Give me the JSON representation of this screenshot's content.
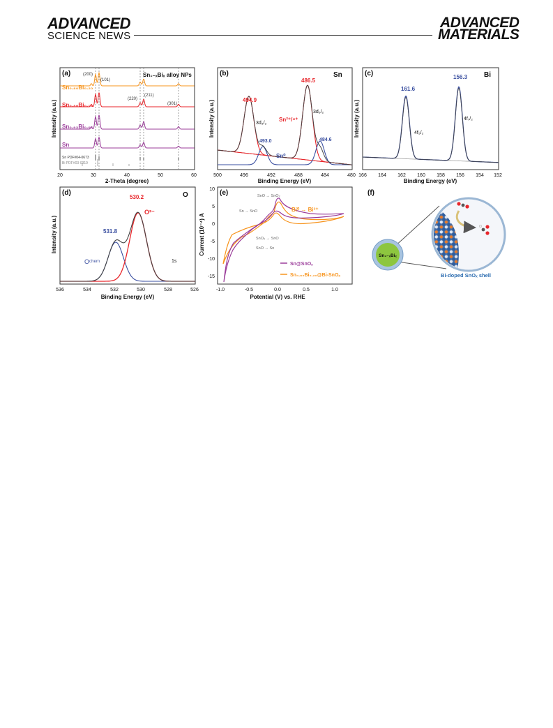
{
  "header": {
    "left_logo_line1": "ADVANCED",
    "left_logo_line2": "SCIENCE NEWS",
    "right_logo_line1": "ADVANCED",
    "right_logo_line2": "MATERIALS"
  },
  "panels": {
    "a": {
      "label": "(a)",
      "title": "Sn₁₋ₓBiₓ alloy NPs",
      "xlabel": "2-Theta (degree)",
      "ylabel": "Intensity (a.u.)",
      "xticks": [
        "20",
        "30",
        "40",
        "50",
        "60"
      ],
      "peaks": [
        "(200)",
        "(101)",
        "(220)",
        "(211)",
        "(301)"
      ],
      "series": [
        "Sn₀.₈₀Bi₀.₂₀",
        "Sn₀.₈₆Bi₀.₁₄",
        "Sn₀.₉₃Bi₀.₀₇",
        "Sn"
      ],
      "ref1": "Sn PDF#04-0673",
      "ref2": "Bi PDF#03-0319"
    },
    "b": {
      "label": "(b)",
      "element": "Sn",
      "xlabel": "Binding Energy (eV)",
      "ylabel": "Intensity (a.u.)",
      "xticks": [
        "500",
        "496",
        "492",
        "488",
        "484",
        "480"
      ],
      "peak1": "494.9",
      "peak2": "486.5",
      "peak3": "493.0",
      "peak4": "484.6",
      "lbl_3d32": "3d₃/₂",
      "lbl_3d52": "3d₅/₂",
      "lbl_sn24": "Sn²⁺/⁴⁺",
      "lbl_sn0": "Sn⁰"
    },
    "c": {
      "label": "(c)",
      "element": "Bi",
      "xlabel": "Binding Energy (eV)",
      "ylabel": "Intensity (a.u.)",
      "xticks": [
        "166",
        "164",
        "162",
        "160",
        "158",
        "156",
        "154",
        "152"
      ],
      "peak1": "161.6",
      "peak2": "156.3",
      "lbl_4f52": "4f₅/₂",
      "lbl_4f72": "4f₇/₂"
    },
    "d": {
      "label": "(d)",
      "element": "O",
      "xlabel": "Binding Energy (eV)",
      "ylabel": "Intensity (a.u.)",
      "xticks": [
        "536",
        "534",
        "532",
        "530",
        "528",
        "526"
      ],
      "peak1": "530.2",
      "peak2": "531.8",
      "lbl_o2": "O²⁻",
      "lbl_ochem": "Oᶜʰᵉᵐ",
      "lbl_1s": "1s"
    },
    "e": {
      "label": "(e)",
      "xlabel": "Potential (V) vs. RHE",
      "ylabel": "Current (10⁻⁴) A",
      "xticks": [
        "-1.0",
        "-0.5",
        "0.0",
        "0.5",
        "1.0"
      ],
      "yticks": [
        "10",
        "5",
        "0",
        "-5",
        "-10",
        "-15"
      ],
      "ann1": "SnO → SnO₂",
      "ann2": "Sn → SnO",
      "ann3": "SnO₂ → SnO",
      "ann4": "SnO → Sn",
      "ann5": "Bi⁰ → Bi³⁺",
      "legend1": "Sn@SnOₓ",
      "legend2": "Sn₀.₈₀Bi₀.₂₀@Bi-SnOₓ"
    },
    "f": {
      "label": "(f)",
      "core": "Sn₁₋ₓBiₓ",
      "shell": "Bi-doped SnOₓ shell"
    }
  },
  "colors": {
    "orange": "#f7941d",
    "red": "#e8262b",
    "purple": "#9b3d9a",
    "blue": "#3a4fa0",
    "gray": "#777777",
    "green": "#8dc63f"
  }
}
